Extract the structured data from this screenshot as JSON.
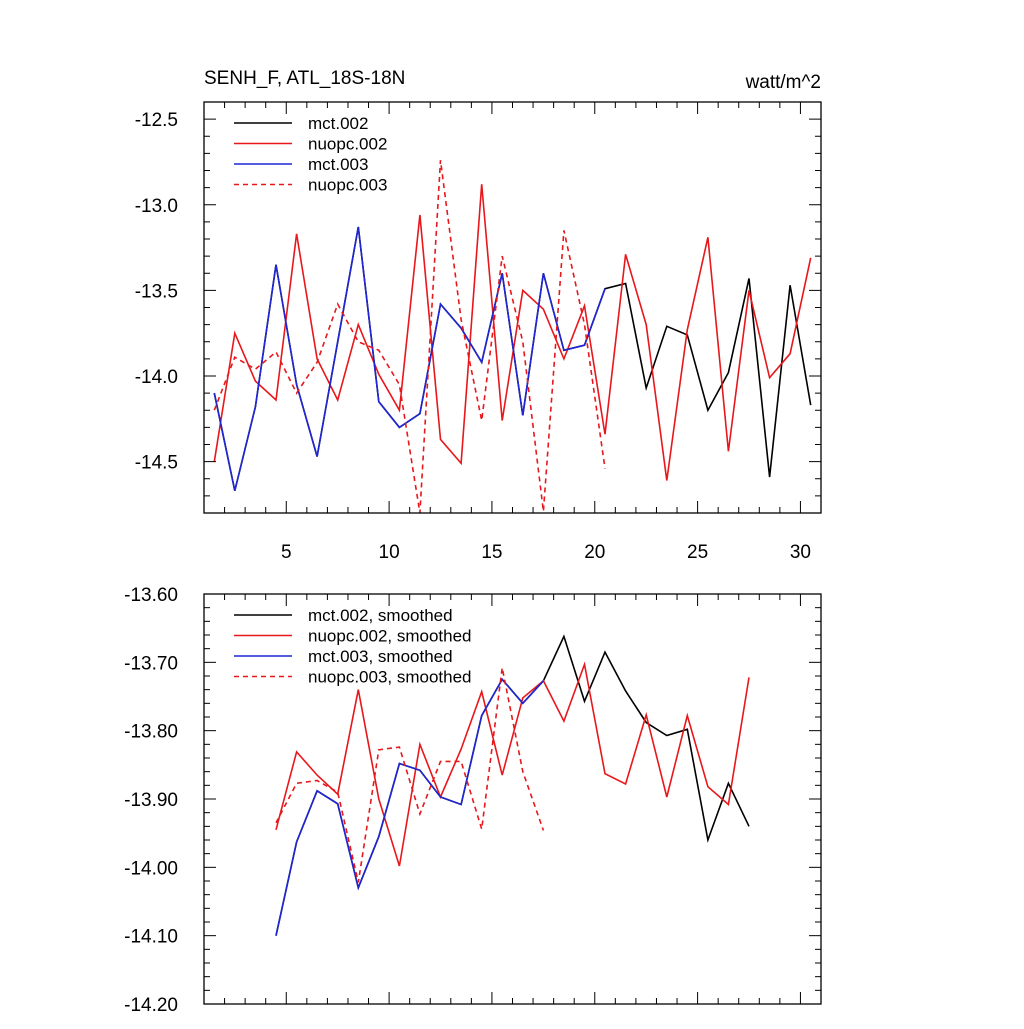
{
  "chart_data": [
    {
      "type": "line",
      "title": "SENH_F, ATL_18S-18N",
      "units": "watt/m^2",
      "xlim": [
        1,
        31
      ],
      "ylim": [
        -14.8,
        -12.4
      ],
      "xticks": [
        5,
        10,
        15,
        20,
        25,
        30
      ],
      "xtick_labels": [
        "5",
        "10",
        "15",
        "20",
        "25",
        "30"
      ],
      "yticks": [
        -12.5,
        -13.0,
        -13.5,
        -14.0,
        -14.5
      ],
      "ytick_labels": [
        "-12.5",
        "-13.0",
        "-13.5",
        "-14.0",
        "-14.5"
      ],
      "legend_position": "top-left",
      "series": [
        {
          "name": "mct.002",
          "color": "#000000",
          "dash": "solid",
          "x": [
            1.5,
            2.5,
            3.5,
            4.5,
            5.5,
            6.5,
            7.5,
            8.5,
            9.5,
            10.5,
            11.5,
            12.5,
            13.5,
            14.5,
            15.5,
            16.5,
            17.5,
            18.5,
            19.5,
            20.5,
            21.5,
            22.5,
            23.5,
            24.5,
            25.5,
            26.5,
            27.5,
            28.5,
            29.5,
            30.5
          ],
          "y": [
            -14.1,
            -14.67,
            -14.18,
            -13.35,
            -14.05,
            -14.47,
            -13.8,
            -13.13,
            -14.15,
            -14.3,
            -14.22,
            -13.58,
            -13.72,
            -13.92,
            -13.4,
            -14.23,
            -13.4,
            -13.85,
            -13.82,
            -13.49,
            -13.46,
            -14.07,
            -13.71,
            -13.76,
            -14.2,
            -13.98,
            -13.43,
            -14.59,
            -13.47,
            -14.17
          ]
        },
        {
          "name": "nuopc.002",
          "color": "#e8171b",
          "dash": "solid",
          "x": [
            1.5,
            2.5,
            3.5,
            4.5,
            5.5,
            6.5,
            7.5,
            8.5,
            9.5,
            10.5,
            11.5,
            12.5,
            13.5,
            14.5,
            15.5,
            16.5,
            17.5,
            18.5,
            19.5,
            20.5,
            21.5,
            22.5,
            23.5,
            24.5,
            25.5,
            26.5,
            27.5,
            28.5,
            29.5,
            30.5
          ],
          "y": [
            -14.5,
            -13.75,
            -14.03,
            -14.14,
            -13.17,
            -13.9,
            -14.14,
            -13.7,
            -13.99,
            -14.2,
            -13.06,
            -14.37,
            -14.51,
            -12.88,
            -14.26,
            -13.5,
            -13.61,
            -13.9,
            -13.59,
            -14.34,
            -13.29,
            -13.7,
            -14.61,
            -13.73,
            -13.19,
            -14.44,
            -13.5,
            -14.01,
            -13.87,
            -13.31
          ]
        },
        {
          "name": "mct.003",
          "color": "#1f26d6",
          "dash": "solid",
          "x": [
            1.5,
            2.5,
            3.5,
            4.5,
            5.5,
            6.5,
            7.5,
            8.5,
            9.5,
            10.5,
            11.5,
            12.5,
            13.5,
            14.5,
            15.5,
            16.5,
            17.5,
            18.5,
            19.5,
            20.5
          ],
          "y": [
            -14.1,
            -14.67,
            -14.18,
            -13.35,
            -14.05,
            -14.47,
            -13.8,
            -13.13,
            -14.15,
            -14.3,
            -14.22,
            -13.58,
            -13.72,
            -13.92,
            -13.4,
            -14.23,
            -13.4,
            -13.85,
            -13.82,
            -13.49
          ]
        },
        {
          "name": "nuopc.003",
          "color": "#e8171b",
          "dash": "dashed",
          "x": [
            1.5,
            2.5,
            3.5,
            4.5,
            5.5,
            6.5,
            7.5,
            8.5,
            9.5,
            10.5,
            11.5,
            12.5,
            13.5,
            14.5,
            15.5,
            16.5,
            17.5,
            18.5,
            19.5,
            20.5
          ],
          "y": [
            -14.2,
            -13.89,
            -13.96,
            -13.86,
            -14.1,
            -13.92,
            -13.58,
            -13.8,
            -13.85,
            -14.05,
            -14.8,
            -12.74,
            -13.67,
            -14.26,
            -13.3,
            -13.8,
            -14.79,
            -13.15,
            -13.7,
            -14.54
          ]
        }
      ]
    },
    {
      "type": "line",
      "title": "",
      "xlim": [
        1,
        31
      ],
      "ylim": [
        -14.2,
        -13.6
      ],
      "xticks": [
        5,
        10,
        15,
        20,
        25,
        30
      ],
      "yticks": [
        -13.6,
        -13.7,
        -13.8,
        -13.9,
        -14.0,
        -14.1,
        -14.2
      ],
      "ytick_labels": [
        "-13.60",
        "-13.70",
        "-13.80",
        "-13.90",
        "-14.00",
        "-14.10",
        "-14.20"
      ],
      "legend_position": "top-left",
      "series": [
        {
          "name": "mct.002, smoothed",
          "color": "#000000",
          "dash": "solid",
          "x": [
            4.5,
            5.5,
            6.5,
            7.5,
            8.5,
            9.5,
            10.5,
            11.5,
            12.5,
            13.5,
            14.5,
            15.5,
            16.5,
            17.5,
            18.5,
            19.5,
            20.5,
            21.5,
            22.5,
            23.5,
            24.5,
            25.5,
            26.5,
            27.5
          ],
          "y": [
            -14.1,
            -13.963,
            -13.888,
            -13.907,
            -14.03,
            -13.955,
            -13.848,
            -13.858,
            -13.897,
            -13.908,
            -13.778,
            -13.725,
            -13.76,
            -13.727,
            -13.662,
            -13.757,
            -13.685,
            -13.742,
            -13.788,
            -13.807,
            -13.798,
            -13.96,
            -13.877,
            -13.94
          ]
        },
        {
          "name": "nuopc.002, smoothed",
          "color": "#e8171b",
          "dash": "solid",
          "x": [
            4.5,
            5.5,
            6.5,
            7.5,
            8.5,
            9.5,
            10.5,
            11.5,
            12.5,
            13.5,
            14.5,
            15.5,
            16.5,
            17.5,
            18.5,
            19.5,
            20.5,
            21.5,
            22.5,
            23.5,
            24.5,
            25.5,
            26.5,
            27.5
          ],
          "y": [
            -13.945,
            -13.831,
            -13.865,
            -13.893,
            -13.74,
            -13.9,
            -13.998,
            -13.82,
            -13.897,
            -13.827,
            -13.743,
            -13.865,
            -13.752,
            -13.727,
            -13.786,
            -13.703,
            -13.863,
            -13.878,
            -13.777,
            -13.897,
            -13.778,
            -13.882,
            -13.908,
            -13.722
          ]
        },
        {
          "name": "mct.003, smoothed",
          "color": "#1f26d6",
          "dash": "solid",
          "x": [
            4.5,
            5.5,
            6.5,
            7.5,
            8.5,
            9.5,
            10.5,
            11.5,
            12.5,
            13.5,
            14.5,
            15.5,
            16.5,
            17.5
          ],
          "y": [
            -14.1,
            -13.963,
            -13.888,
            -13.907,
            -14.03,
            -13.955,
            -13.848,
            -13.858,
            -13.897,
            -13.908,
            -13.778,
            -13.725,
            -13.76,
            -13.727
          ]
        },
        {
          "name": "nuopc.003, smoothed",
          "color": "#e8171b",
          "dash": "dashed",
          "x": [
            4.5,
            5.5,
            6.5,
            7.5,
            8.5,
            9.5,
            10.5,
            11.5,
            12.5,
            13.5,
            14.5,
            15.5,
            16.5,
            17.5
          ],
          "y": [
            -13.935,
            -13.877,
            -13.873,
            -13.89,
            -14.022,
            -13.828,
            -13.824,
            -13.922,
            -13.845,
            -13.845,
            -13.944,
            -13.708,
            -13.86,
            -13.946
          ]
        }
      ]
    }
  ]
}
